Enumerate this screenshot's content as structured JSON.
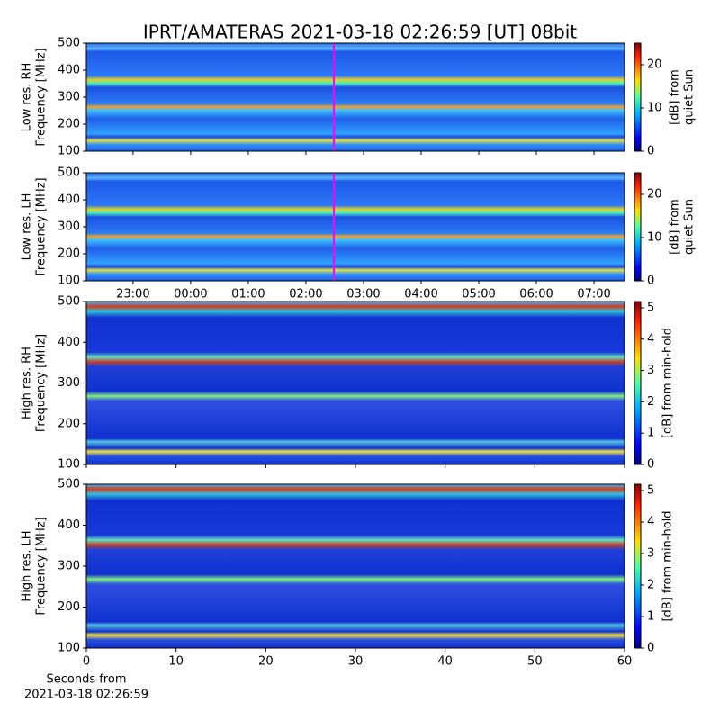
{
  "title": "IPRT/AMATERAS 2021-03-18 02:26:59 [UT]   08bit",
  "chart_data": [
    {
      "type": "heatmap",
      "ylabel": [
        "Low res. RH",
        "Frequency [MHz]"
      ],
      "ylim": [
        100,
        500
      ],
      "yticks": [
        100,
        200,
        300,
        400,
        500
      ],
      "colorbar_label": [
        "[dB] from",
        "quiet Sun"
      ],
      "clim": [
        0,
        25
      ],
      "cticks": [
        0,
        10,
        20
      ]
    },
    {
      "type": "heatmap",
      "ylabel": [
        "Low res. LH",
        "Frequency [MHz]"
      ],
      "ylim": [
        100,
        500
      ],
      "yticks": [
        100,
        200,
        300,
        400,
        500
      ],
      "colorbar_label": [
        "[dB] from",
        "quiet Sun"
      ],
      "clim": [
        0,
        25
      ],
      "cticks": [
        0,
        10,
        20
      ],
      "xlim": [
        22.19,
        31.53
      ],
      "xticks": [
        {
          "value": 23,
          "label": "23:00"
        },
        {
          "value": 24,
          "label": "00:00"
        },
        {
          "value": 25,
          "label": "01:00"
        },
        {
          "value": 26,
          "label": "02:00"
        },
        {
          "value": 27,
          "label": "03:00"
        },
        {
          "value": 28,
          "label": "04:00"
        },
        {
          "value": 29,
          "label": "05:00"
        },
        {
          "value": 30,
          "label": "06:00"
        },
        {
          "value": 31,
          "label": "07:00"
        }
      ]
    },
    {
      "type": "heatmap",
      "ylabel": [
        "High res. RH",
        "Frequency [MHz]"
      ],
      "ylim": [
        100,
        500
      ],
      "yticks": [
        100,
        200,
        300,
        400,
        500
      ],
      "colorbar_label": [
        "[dB] from min-hold"
      ],
      "clim": [
        0,
        5.2
      ],
      "cticks": [
        0,
        1,
        2,
        3,
        4,
        5
      ]
    },
    {
      "type": "heatmap",
      "ylabel": [
        "High res. LH",
        "Frequency [MHz]"
      ],
      "ylim": [
        100,
        500
      ],
      "yticks": [
        100,
        200,
        300,
        400,
        500
      ],
      "colorbar_label": [
        "[dB] from min-hold"
      ],
      "clim": [
        0,
        5.2
      ],
      "cticks": [
        0,
        1,
        2,
        3,
        4,
        5
      ],
      "xlim": [
        0,
        60
      ],
      "xticks": [
        0,
        10,
        20,
        30,
        40,
        50,
        60
      ],
      "xlabel": [
        "Seconds from",
        "2021-03-18 02:26:59"
      ]
    }
  ]
}
